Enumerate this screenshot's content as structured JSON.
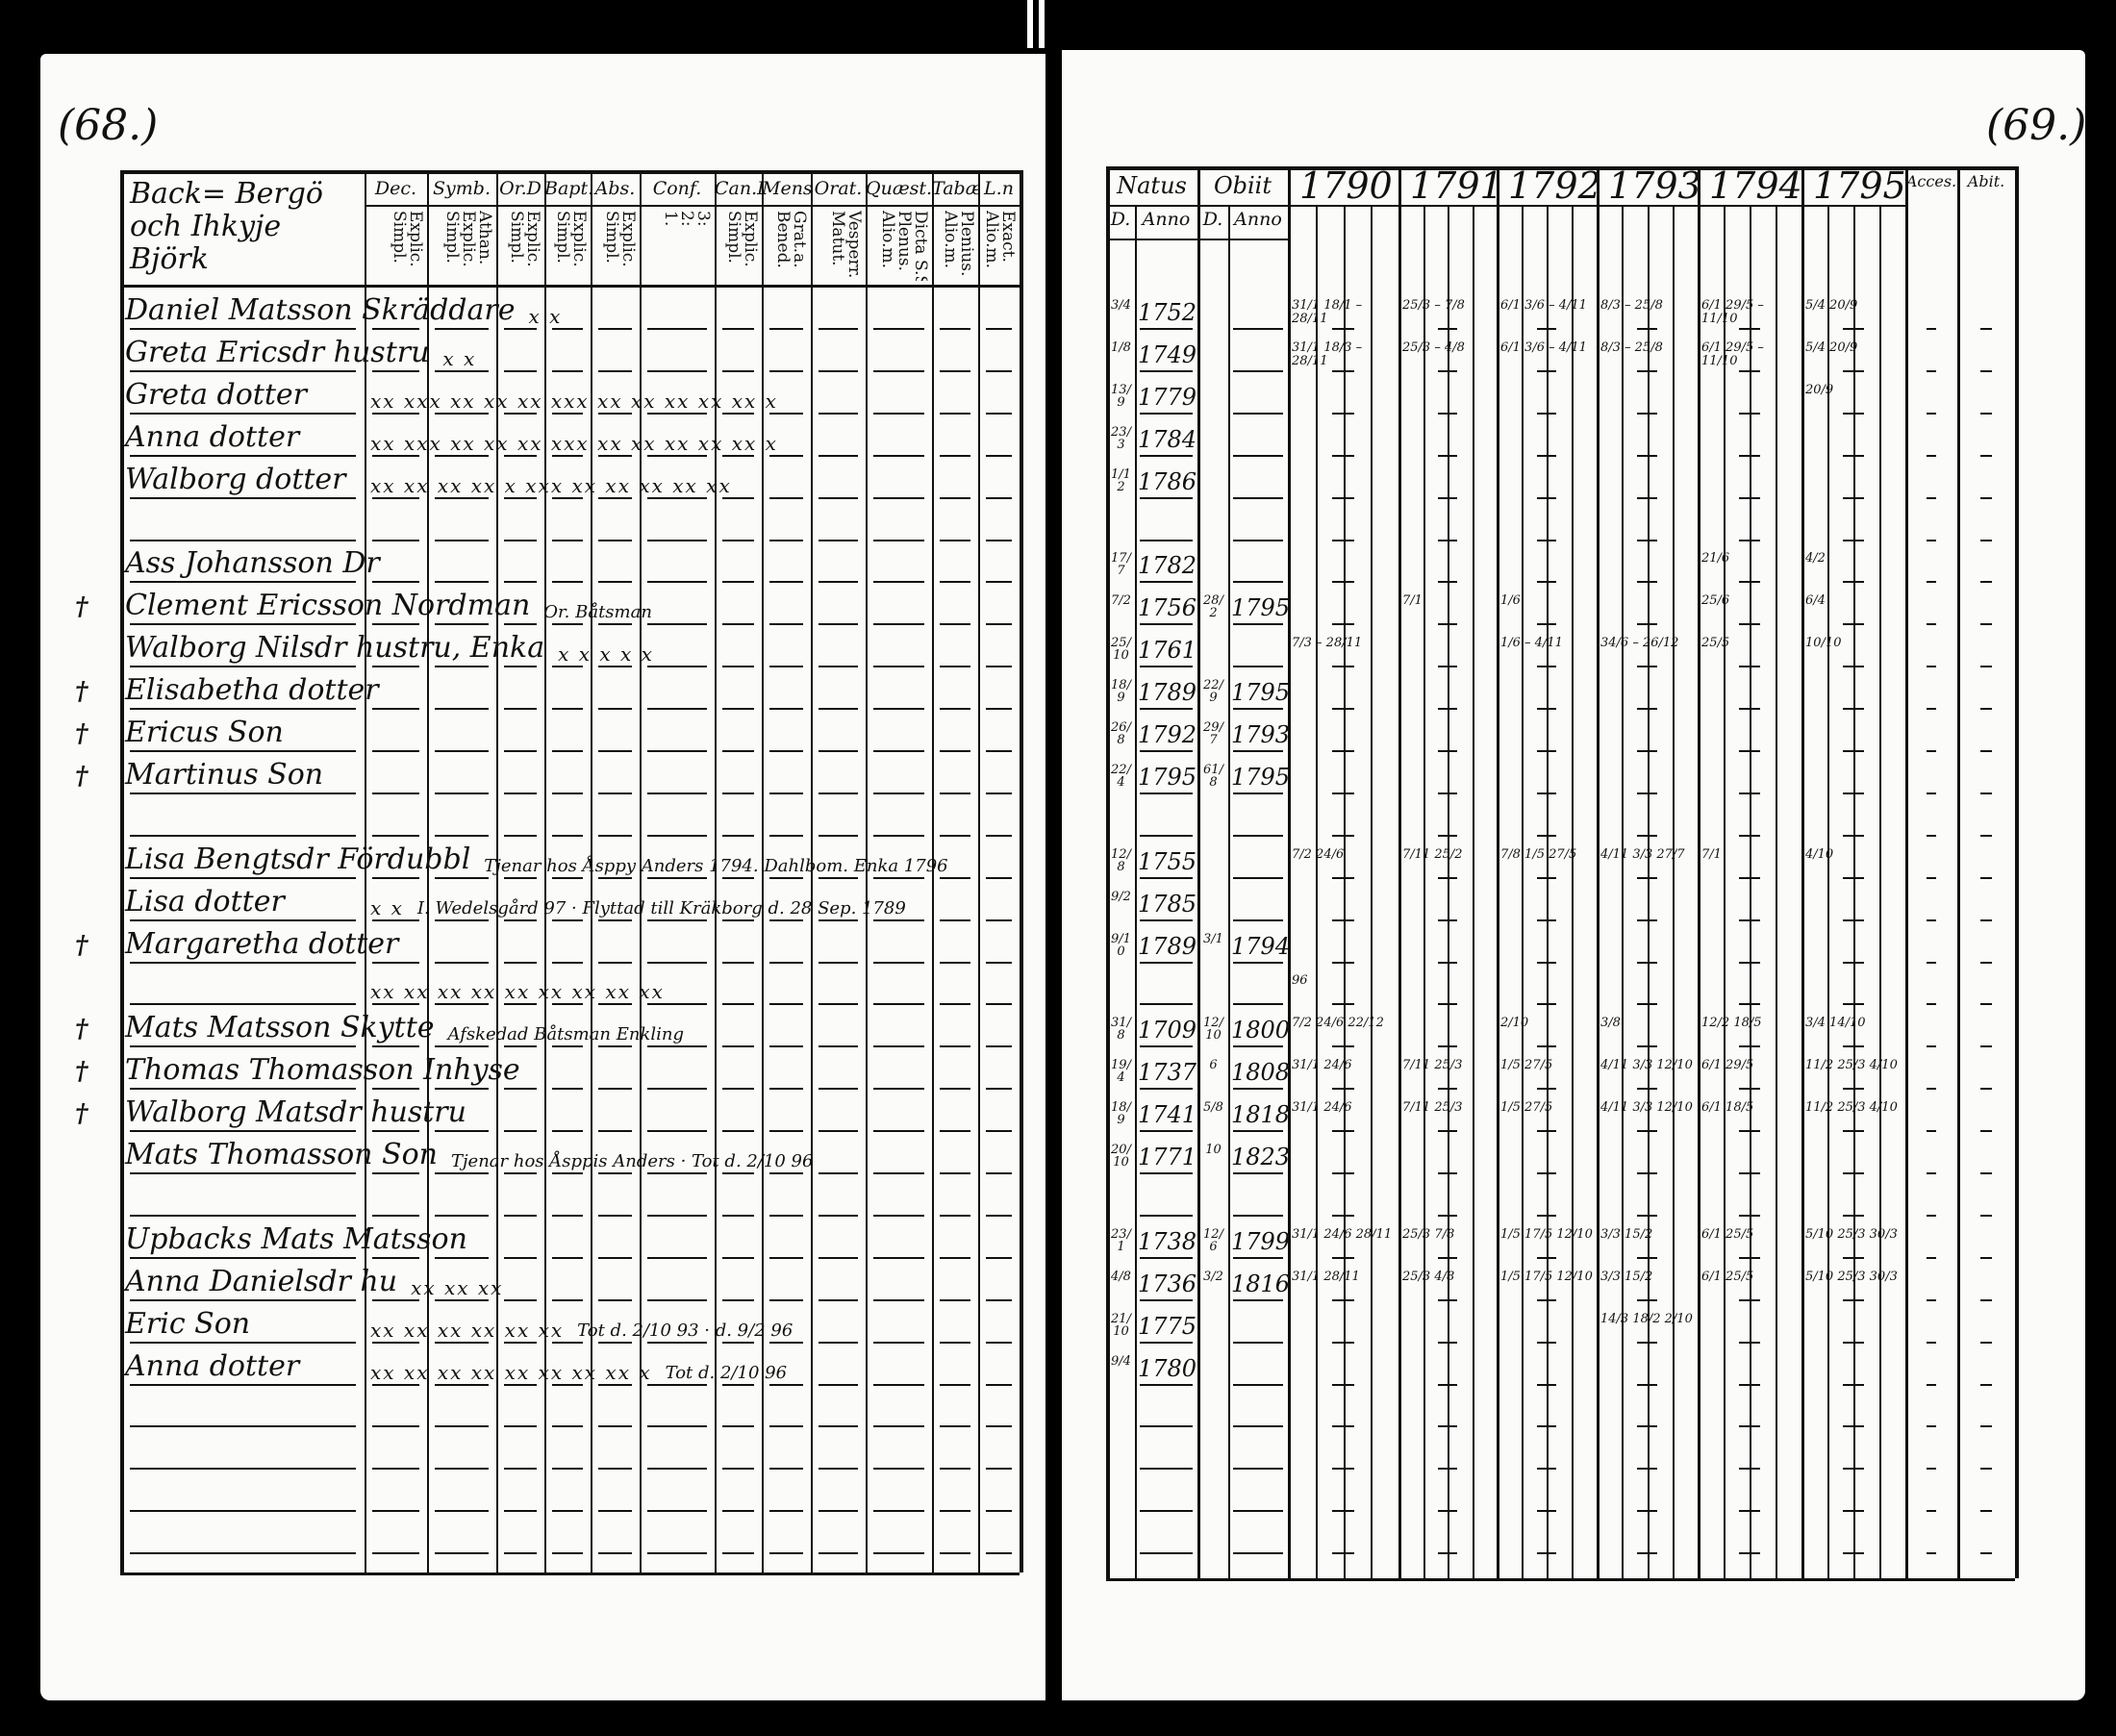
{
  "left_page": {
    "page_number": "(68.)",
    "title": "Back= Bergö och Ihkyje Björk",
    "columns": [
      {
        "head": "Dec.",
        "sub": "Explic.\nSimpl."
      },
      {
        "head": "Symb.",
        "sub": "Athan.\nExplic.\nSimpl."
      },
      {
        "head": "Or.D",
        "sub": "Explic.\nSimpl."
      },
      {
        "head": "Bapt.",
        "sub": "Explic.\nSimpl."
      },
      {
        "head": "Abs.",
        "sub": "Explic.\nSimpl."
      },
      {
        "head": "Conf.",
        "sub": "3:\n2:\n1."
      },
      {
        "head": "Can.D",
        "sub": "Explic.\nSimpl."
      },
      {
        "head": "Mens.",
        "sub": "Grat.a.\nBened."
      },
      {
        "head": "Orat.",
        "sub": "Vesperr.\nMatut."
      },
      {
        "head": "Quæst.",
        "sub": "Dicta S.S.\nPlenus.\nAlio.m."
      },
      {
        "head": "Tabæ",
        "sub": "Plenius.\nAlio.m."
      },
      {
        "head": "L.n",
        "sub": "Exact.\nAlio.m."
      }
    ]
  },
  "right_page": {
    "page_number": "(69.)",
    "natus": "Natus",
    "natus_d": "D.",
    "natus_anno": "Anno",
    "obiit": "Obiit",
    "obiit_d": "D.",
    "obiit_anno": "Anno",
    "years": [
      "1790",
      "1791",
      "1792",
      "1793",
      "1794",
      "1795"
    ],
    "accesi": "Acces.",
    "abit": "Abit."
  },
  "rows": [
    {
      "mark": "",
      "name": "Daniel Matsson Skräddare",
      "note": "",
      "marks": "x x",
      "natus_d": "3/4",
      "natus_anno": "1752",
      "obiit_d": "",
      "obiit_anno": "",
      "years": [
        "31/1 18/1 – 28/11",
        "25/3 – 7/8",
        "6/1 3/6 – 4/11",
        "8/3 – 25/8",
        "6/1 29/5 – 11/10",
        "5/4 20/9"
      ]
    },
    {
      "mark": "",
      "name": "Greta Ericsdr hustru",
      "note": "",
      "marks": "x x",
      "natus_d": "1/8",
      "natus_anno": "1749",
      "obiit_d": "",
      "obiit_anno": "",
      "years": [
        "31/1 18/3 – 28/11",
        "25/3 – 4/8",
        "6/1 3/6 – 4/11",
        "8/3 – 25/8",
        "6/1 29/5 – 11/10",
        "5/4 20/9"
      ]
    },
    {
      "mark": "",
      "name": "Greta dotter",
      "note": "",
      "marks": "xx  xxx  xx  xx  xx  xxx  xx  xx  xx  xx  xx  x",
      "natus_d": "13/9",
      "natus_anno": "1779",
      "obiit_d": "",
      "obiit_anno": "",
      "years": [
        "",
        "",
        "",
        "",
        "",
        "20/9"
      ]
    },
    {
      "mark": "",
      "name": "Anna dotter",
      "note": "",
      "marks": "xx  xxx  xx  xx  xx  xxx  xx  xx  xx  xx  xx  x",
      "natus_d": "23/3",
      "natus_anno": "1784",
      "obiit_d": "",
      "obiit_anno": "",
      "years": [
        "",
        "",
        "",
        "",
        "",
        ""
      ]
    },
    {
      "mark": "",
      "name": "Walborg dotter",
      "note": "",
      "marks": "xx  xx  xx  xx  x  xxx  xx  xx  xx  xx  xx",
      "natus_d": "1/12",
      "natus_anno": "1786",
      "obiit_d": "",
      "obiit_anno": "",
      "years": [
        "",
        "",
        "",
        "",
        "",
        ""
      ]
    },
    {
      "mark": "",
      "name": "",
      "note": "",
      "marks": "",
      "natus_d": "",
      "natus_anno": "",
      "obiit_d": "",
      "obiit_anno": "",
      "years": [
        "",
        "",
        "",
        "",
        "",
        ""
      ]
    },
    {
      "mark": "",
      "name": "Ass Johansson Dr",
      "note": "",
      "marks": "",
      "natus_d": "17/7",
      "natus_anno": "1782",
      "obiit_d": "",
      "obiit_anno": "",
      "years": [
        "",
        "",
        "",
        "",
        "21/6",
        "4/2"
      ]
    },
    {
      "mark": "†",
      "name": "Clement Ericsson Nordman",
      "note": "Or. Båtsman",
      "marks": "",
      "natus_d": "7/2",
      "natus_anno": "1756",
      "obiit_d": "28/2",
      "obiit_anno": "1795",
      "years": [
        "",
        "7/1",
        "1/6",
        "",
        "25/6",
        "6/4"
      ]
    },
    {
      "mark": "",
      "name": "Walborg Nilsdr hustru, Enka",
      "note": "",
      "marks": "x x x  x x",
      "natus_d": "25/10",
      "natus_anno": "1761",
      "obiit_d": "",
      "obiit_anno": "",
      "years": [
        "7/3 – 28/11",
        "",
        "1/6 – 4/11",
        "34/6 – 26/12",
        "25/5",
        "10/10"
      ]
    },
    {
      "mark": "†",
      "name": "Elisabetha dotter",
      "note": "",
      "marks": "",
      "natus_d": "18/9",
      "natus_anno": "1789",
      "obiit_d": "22/9",
      "obiit_anno": "1795",
      "years": [
        "",
        "",
        "",
        "",
        "",
        ""
      ]
    },
    {
      "mark": "†",
      "name": "Ericus Son",
      "note": "",
      "marks": "",
      "natus_d": "26/8",
      "natus_anno": "1792",
      "obiit_d": "29/7",
      "obiit_anno": "1793",
      "years": [
        "",
        "",
        "",
        "",
        "",
        ""
      ]
    },
    {
      "mark": "†",
      "name": "Martinus Son",
      "note": "",
      "marks": "",
      "natus_d": "22/4",
      "natus_anno": "1795",
      "obiit_d": "61/8",
      "obiit_anno": "1795",
      "years": [
        "",
        "",
        "",
        "",
        "",
        ""
      ]
    },
    {
      "mark": "",
      "name": "",
      "note": "",
      "marks": "",
      "natus_d": "",
      "natus_anno": "",
      "obiit_d": "",
      "obiit_anno": "",
      "years": [
        "",
        "",
        "",
        "",
        "",
        ""
      ]
    },
    {
      "mark": "",
      "name": "Lisa Bengtsdr Fördubbl",
      "note": "Tjenar hos Åsppy Anders 1794. Dahlbom. Enka 1796",
      "marks": "",
      "natus_d": "12/8",
      "natus_anno": "1755",
      "obiit_d": "",
      "obiit_anno": "",
      "years": [
        "7/2 24/6",
        "7/11 25/2",
        "7/8 1/5 27/5",
        "4/11 3/3 27/7",
        "7/1",
        "4/10"
      ]
    },
    {
      "mark": "",
      "name": "Lisa dotter",
      "note": "I. Wedelsgård 97 · Flyttad till Kräkborg d. 28 Sep. 1789",
      "marks": "x x",
      "natus_d": "9/2",
      "natus_anno": "1785",
      "obiit_d": "",
      "obiit_anno": "",
      "years": [
        "",
        "",
        "",
        "",
        "",
        ""
      ]
    },
    {
      "mark": "†",
      "name": "Margaretha dotter",
      "note": "",
      "marks": "",
      "natus_d": "9/10",
      "natus_anno": "1789",
      "obiit_d": "3/1",
      "obiit_anno": "1794",
      "years": [
        "",
        "",
        "",
        "",
        "",
        ""
      ]
    },
    {
      "mark": "",
      "name": "",
      "note": "",
      "marks": "xx xx xx xx xx xx xx xx xx",
      "natus_d": "",
      "natus_anno": "",
      "obiit_d": "",
      "obiit_anno": "",
      "years": [
        "96",
        "",
        "",
        "",
        "",
        ""
      ]
    },
    {
      "mark": "†",
      "name": "Mats Matsson Skytte",
      "note": "Afskedad Båtsman Enkling",
      "marks": "",
      "natus_d": "31/8",
      "natus_anno": "1709",
      "obiit_d": "12/10",
      "obiit_anno": "1800",
      "years": [
        "7/2 24/6 22/12",
        "",
        "2/10",
        "3/8",
        "12/2 18/5",
        "3/4 14/10"
      ]
    },
    {
      "mark": "†",
      "name": "Thomas Thomasson Inhyse",
      "note": "",
      "marks": "",
      "natus_d": "19/4",
      "natus_anno": "1737",
      "obiit_d": "6",
      "obiit_anno": "1808",
      "years": [
        "31/1 24/6",
        "7/11 25/3",
        "1/5 27/5",
        "4/11 3/3 12/10",
        "6/1 29/5",
        "11/2 25/3 4/10"
      ]
    },
    {
      "mark": "†",
      "name": "Walborg Matsdr hustru",
      "note": "",
      "marks": "",
      "natus_d": "18/9",
      "natus_anno": "1741",
      "obiit_d": "5/8",
      "obiit_anno": "1818",
      "years": [
        "31/1 24/6",
        "7/11 25/3",
        "1/5 27/5",
        "4/11 3/3 12/10",
        "6/1 18/5",
        "11/2 25/3 4/10"
      ]
    },
    {
      "mark": "",
      "name": "Mats Thomasson Son",
      "note": "Tjenar hos Åsppis Anders · Tot d. 2/10 96",
      "marks": "",
      "natus_d": "20/10",
      "natus_anno": "1771",
      "obiit_d": "10",
      "obiit_anno": "1823",
      "years": [
        "",
        "",
        "",
        "",
        "",
        ""
      ]
    },
    {
      "mark": "",
      "name": "",
      "note": "",
      "marks": "",
      "natus_d": "",
      "natus_anno": "",
      "obiit_d": "",
      "obiit_anno": "",
      "years": [
        "",
        "",
        "",
        "",
        "",
        ""
      ]
    },
    {
      "mark": "",
      "name": "Upbacks Mats Matsson",
      "note": "",
      "marks": "",
      "natus_d": "23/1",
      "natus_anno": "1738",
      "obiit_d": "12/6",
      "obiit_anno": "1799",
      "years": [
        "31/1 24/6 28/11",
        "25/3 7/8",
        "1/5 17/5 12/10",
        "3/3 15/2",
        "6/1 25/5",
        "5/10 25/3 30/3"
      ]
    },
    {
      "mark": "",
      "name": "Anna Danielsdr hu",
      "note": "",
      "marks": "xx xx xx",
      "natus_d": "4/8",
      "natus_anno": "1736",
      "obiit_d": "3/2",
      "obiit_anno": "1816",
      "years": [
        "31/1 28/11",
        "25/3 4/8",
        "1/5 17/5 12/10",
        "3/3 15/2",
        "6/1 25/5",
        "5/10 25/3 30/3"
      ]
    },
    {
      "mark": "",
      "name": "Eric Son",
      "note": "Tot d. 2/10 93 · d. 9/2 96",
      "marks": "xx xx xx xx xx xx",
      "natus_d": "21/10",
      "natus_anno": "1775",
      "obiit_d": "",
      "obiit_anno": "",
      "years": [
        "",
        "",
        "",
        "14/3 18/2 2/10",
        "",
        ""
      ]
    },
    {
      "mark": "",
      "name": "Anna dotter",
      "note": "Tot d. 2/10 96",
      "marks": "xx xx xx xx xx xx xx xx x",
      "natus_d": "9/4",
      "natus_anno": "1780",
      "obiit_d": "",
      "obiit_anno": "",
      "years": [
        "",
        "",
        "",
        "",
        "",
        ""
      ]
    }
  ]
}
